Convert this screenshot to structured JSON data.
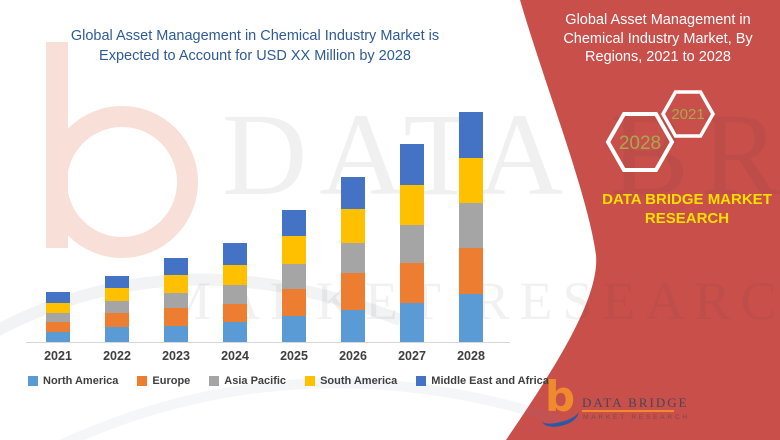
{
  "left_panel": {
    "title_line1": "Global Asset Management in Chemical Industry Market is",
    "title_line2": "Expected to Account for USD XX Million by 2028"
  },
  "right_panel": {
    "title": "Global Asset Management in Chemical Industry Market, By Regions, 2021 to 2028",
    "badge_small": "2021",
    "badge_large": "2028",
    "brand_text": "DATA BRIDGE MARKET RESEARCH",
    "logo": {
      "brand": "DATA BRIDGE",
      "sub": "MARKET RESEARCH"
    },
    "colors": {
      "panel_red": "#C94F4B",
      "badge_text": "#A8A851",
      "brand_yellow": "#FFDF00",
      "title_blue": "#2E5B97"
    }
  },
  "watermark": {
    "line1": "DATA BRIDGE",
    "line2": "MARKET RESEARCH"
  },
  "chart_data": {
    "type": "bar",
    "stacked": true,
    "title": "Global Asset Management in Chemical Industry Market is Expected to Account for USD XX Million by 2028",
    "xlabel": "",
    "ylabel": "",
    "value_axis_hidden": true,
    "grid": false,
    "legend_position": "bottom",
    "note": "Actual values not disclosed (USD XX Million); series values are relative units estimated from bar segment heights.",
    "categories": [
      "2021",
      "2022",
      "2023",
      "2024",
      "2025",
      "2026",
      "2027",
      "2028"
    ],
    "series": [
      {
        "name": "North America",
        "color": "#5B9BD5",
        "values": [
          10,
          15,
          16,
          20,
          26,
          32,
          39,
          48
        ]
      },
      {
        "name": "Europe",
        "color": "#ED7D31",
        "values": [
          10,
          14,
          18,
          18,
          27,
          37,
          40,
          46
        ]
      },
      {
        "name": "Asia Pacific",
        "color": "#A5A5A5",
        "values": [
          9,
          12,
          15,
          19,
          25,
          30,
          38,
          45
        ]
      },
      {
        "name": "South America",
        "color": "#FFC000",
        "values": [
          10,
          13,
          18,
          20,
          28,
          34,
          40,
          45
        ]
      },
      {
        "name": "Middle East and Africa",
        "color": "#4472C4",
        "values": [
          11,
          12,
          17,
          22,
          26,
          32,
          41,
          46
        ]
      }
    ],
    "totals": [
      50,
      66,
      84,
      99,
      132,
      165,
      198,
      230
    ]
  }
}
